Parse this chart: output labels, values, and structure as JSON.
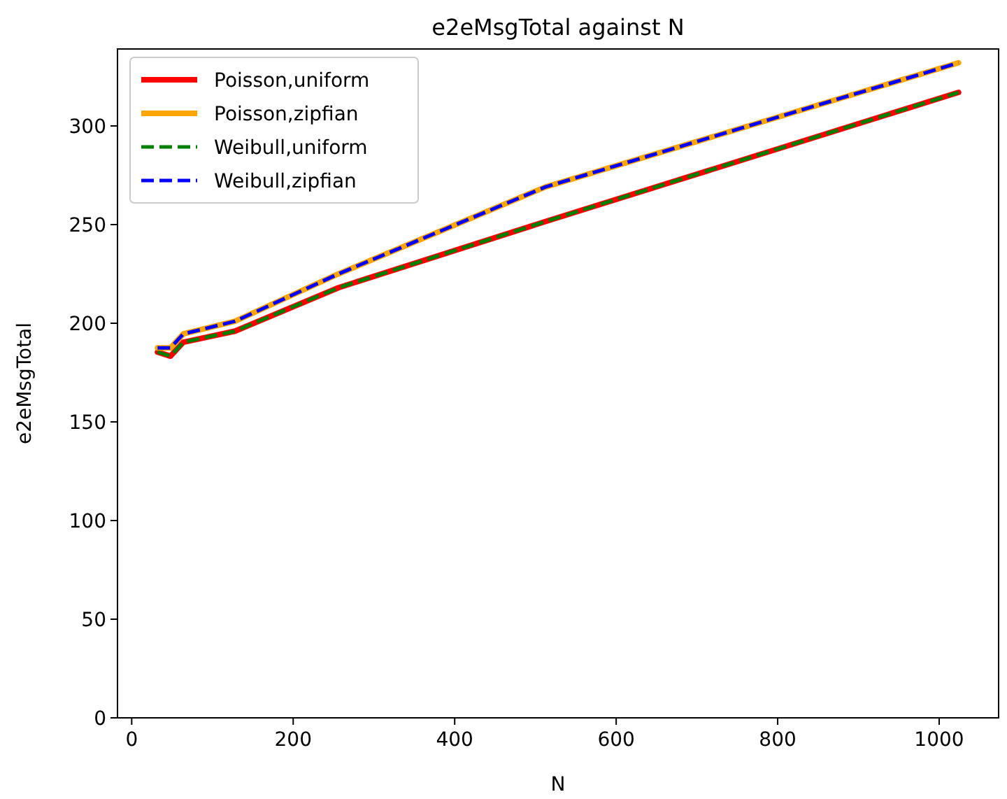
{
  "chart_data": {
    "type": "line",
    "title": "e2eMsgTotal against N",
    "xlabel": "N",
    "ylabel": "e2eMsgTotal",
    "x": [
      32,
      48,
      64,
      128,
      256,
      512,
      1024
    ],
    "series": [
      {
        "name": "Poisson,uniform",
        "color": "#ff0000",
        "line_style": "solid",
        "values": [
          185.4,
          183.3,
          190.4,
          196,
          218,
          251.5,
          317
        ]
      },
      {
        "name": "Poisson,zipfian",
        "color": "#ffa500",
        "line_style": "solid",
        "values": [
          187.5,
          187.5,
          194.6,
          201,
          225,
          269,
          332
        ]
      },
      {
        "name": "Weibull,uniform",
        "color": "#008000",
        "line_style": "dashed",
        "values": [
          185.4,
          183.3,
          190.4,
          196,
          218,
          251.5,
          317
        ]
      },
      {
        "name": "Weibull,zipfian",
        "color": "#0000ff",
        "line_style": "dashed",
        "values": [
          187.5,
          187.5,
          194.6,
          201,
          225,
          269,
          332
        ]
      }
    ],
    "xlim": [
      -17.6,
      1073.6
    ],
    "ylim": [
      0,
      339
    ],
    "xticks": [
      0,
      200,
      400,
      600,
      800,
      1000
    ],
    "yticks": [
      0,
      50,
      100,
      150,
      200,
      250,
      300
    ],
    "grid": false,
    "legend": "top left",
    "marker": "none"
  }
}
